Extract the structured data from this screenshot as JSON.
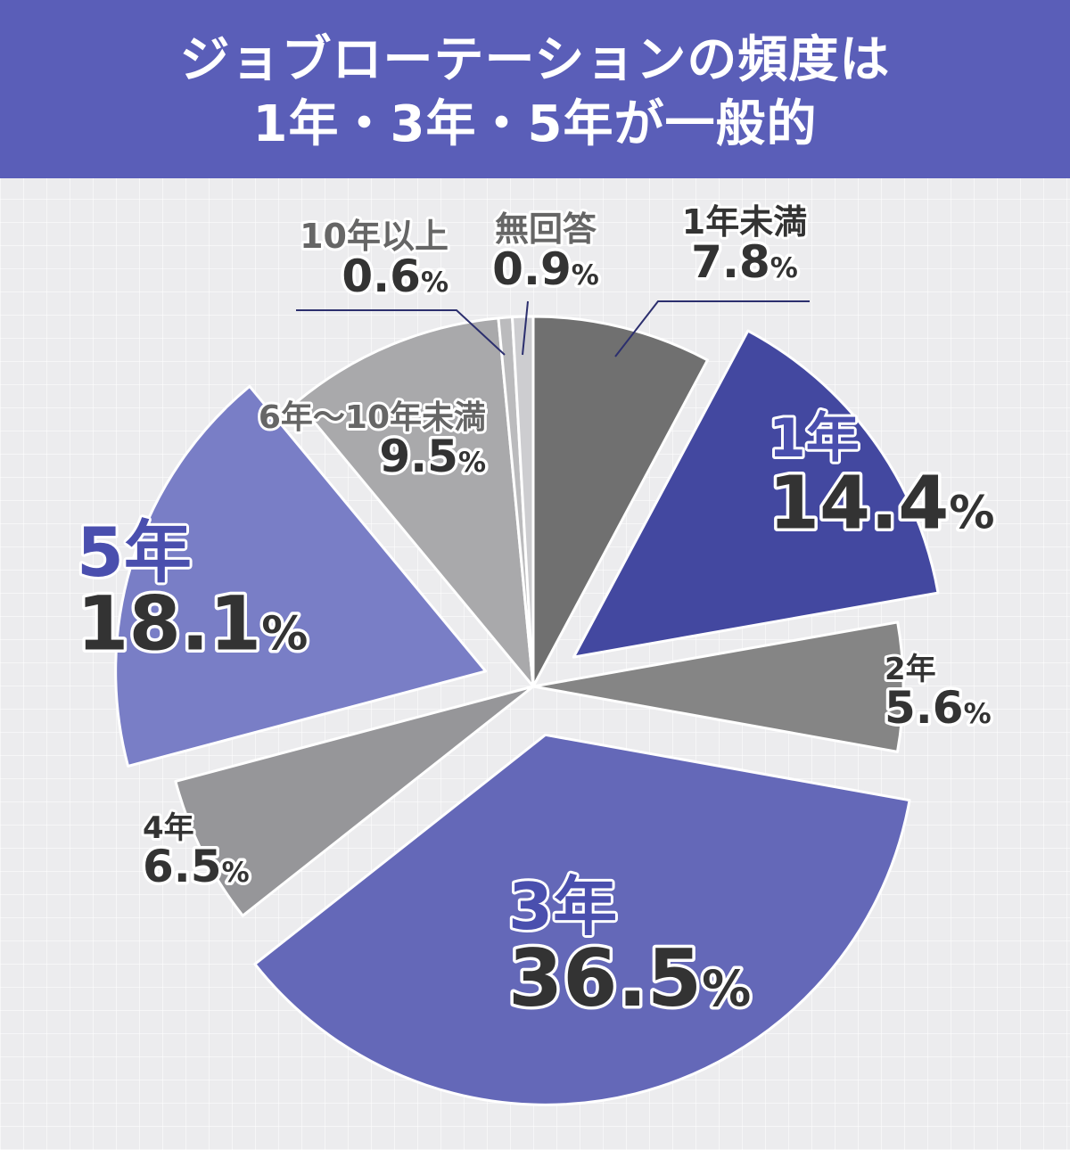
{
  "title_lines": [
    "ジョブローテーションの頻度は",
    "1年・3年・5年が一般的"
  ],
  "colors": {
    "header": "#5a5eb8",
    "accent_text": "#4a4fae",
    "value_text": "#333333",
    "minor_text": "#666666"
  },
  "chart_data": {
    "type": "pie",
    "title": "ジョブローテーションの頻度は 1年・3年・5年が一般的",
    "start": "12 o'clock, clockwise",
    "percent_symbol": "%",
    "slices": [
      {
        "label": "1年未満",
        "value": 7.8,
        "display": "7.8",
        "color": "#707070",
        "label_style": "small",
        "leader": true
      },
      {
        "label": "1年",
        "value": 14.4,
        "display": "14.4",
        "color": "#4348a0",
        "label_style": "big",
        "explode": 1
      },
      {
        "label": "2年",
        "value": 5.6,
        "display": "5.6",
        "color": "#858585",
        "label_style": "small"
      },
      {
        "label": "3年",
        "value": 36.5,
        "display": "36.5",
        "color": "#6468b8",
        "label_style": "big",
        "explode": 1
      },
      {
        "label": "4年",
        "value": 6.5,
        "display": "6.5",
        "color": "#969699",
        "label_style": "small"
      },
      {
        "label": "5年",
        "value": 18.1,
        "display": "18.1",
        "color": "#797ec6",
        "label_style": "big",
        "explode": 1
      },
      {
        "label": "6年～10年未満",
        "value": 9.5,
        "display": "9.5",
        "color": "#a9a9ab",
        "label_style": "small"
      },
      {
        "label": "10年以上",
        "value": 0.6,
        "display": "0.6",
        "color": "#bbbbbd",
        "label_style": "small",
        "leader": true
      },
      {
        "label": "無回答",
        "value": 0.9,
        "display": "0.9",
        "color": "#cdcdd0",
        "label_style": "small",
        "leader": true
      }
    ]
  }
}
